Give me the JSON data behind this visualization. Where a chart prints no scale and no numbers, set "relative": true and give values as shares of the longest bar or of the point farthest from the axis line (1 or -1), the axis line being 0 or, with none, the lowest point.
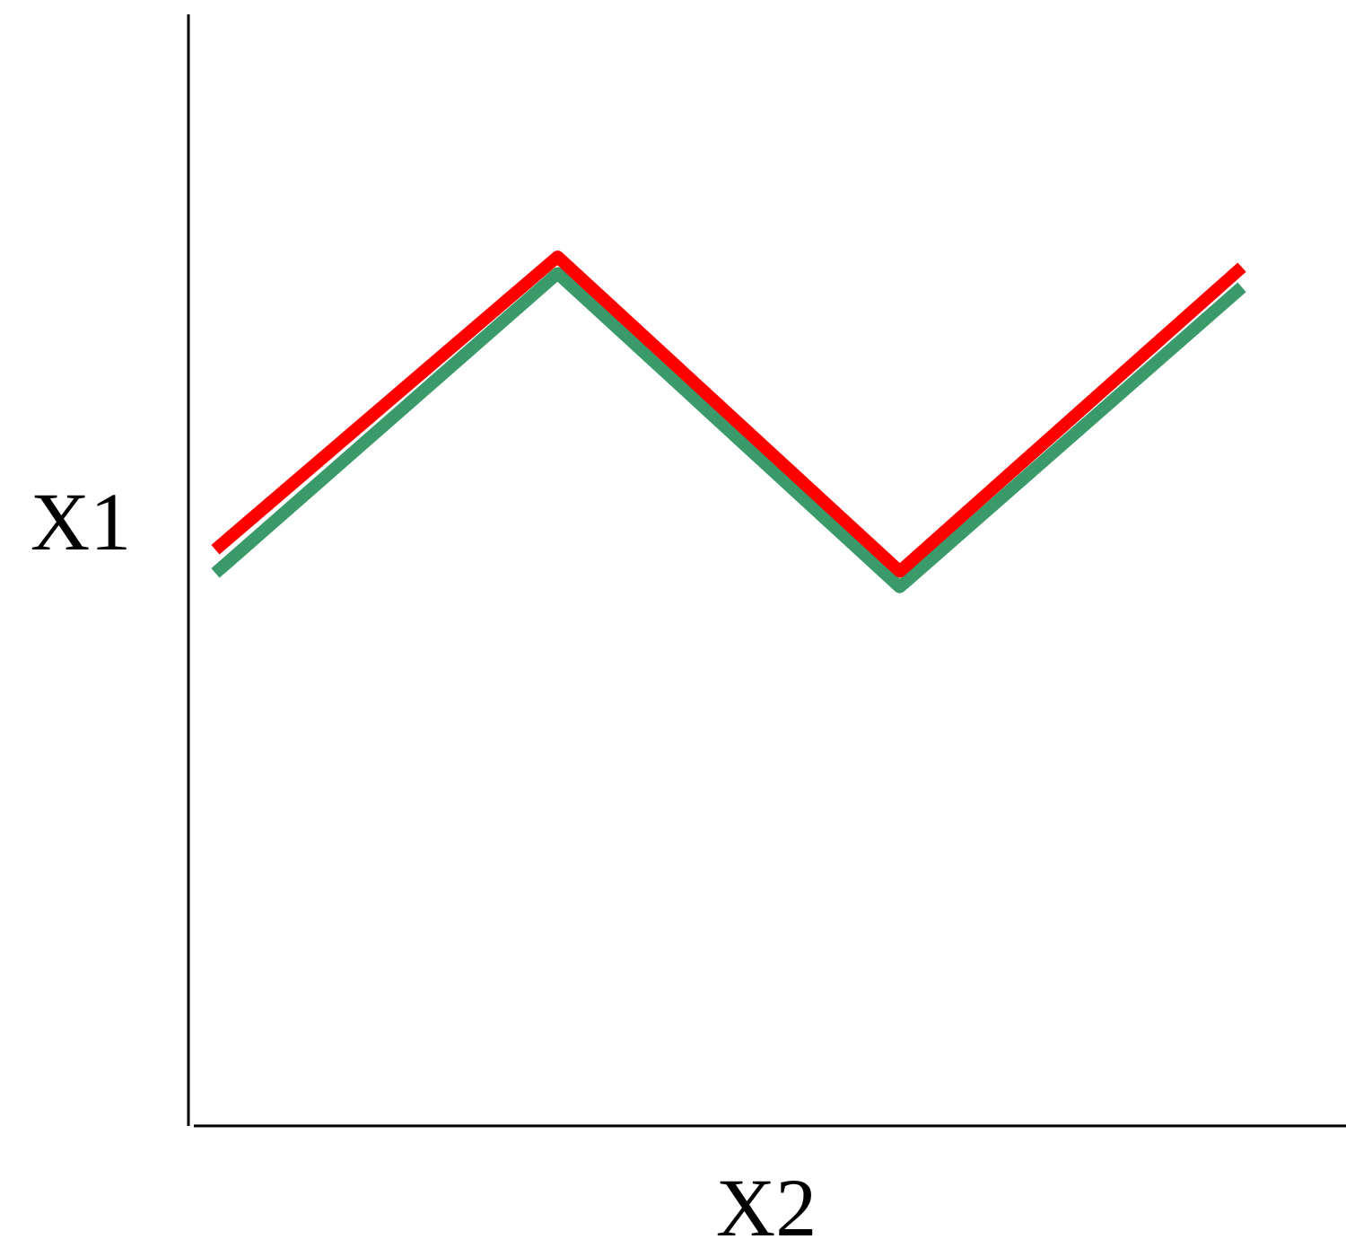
{
  "chart_data": {
    "type": "line",
    "relative": true,
    "xlabel": "X2",
    "ylabel": "X1",
    "categories": [
      null,
      null,
      null,
      null
    ],
    "series": [
      {
        "color": "#3a9a6a",
        "values": [
          0.636,
          0.981,
          0.62,
          0.965
        ]
      },
      {
        "color": "#ff0000",
        "values": [
          0.663,
          1,
          0.638,
          0.988
        ]
      }
    ],
    "marker": "none",
    "line_style": "solid"
  }
}
